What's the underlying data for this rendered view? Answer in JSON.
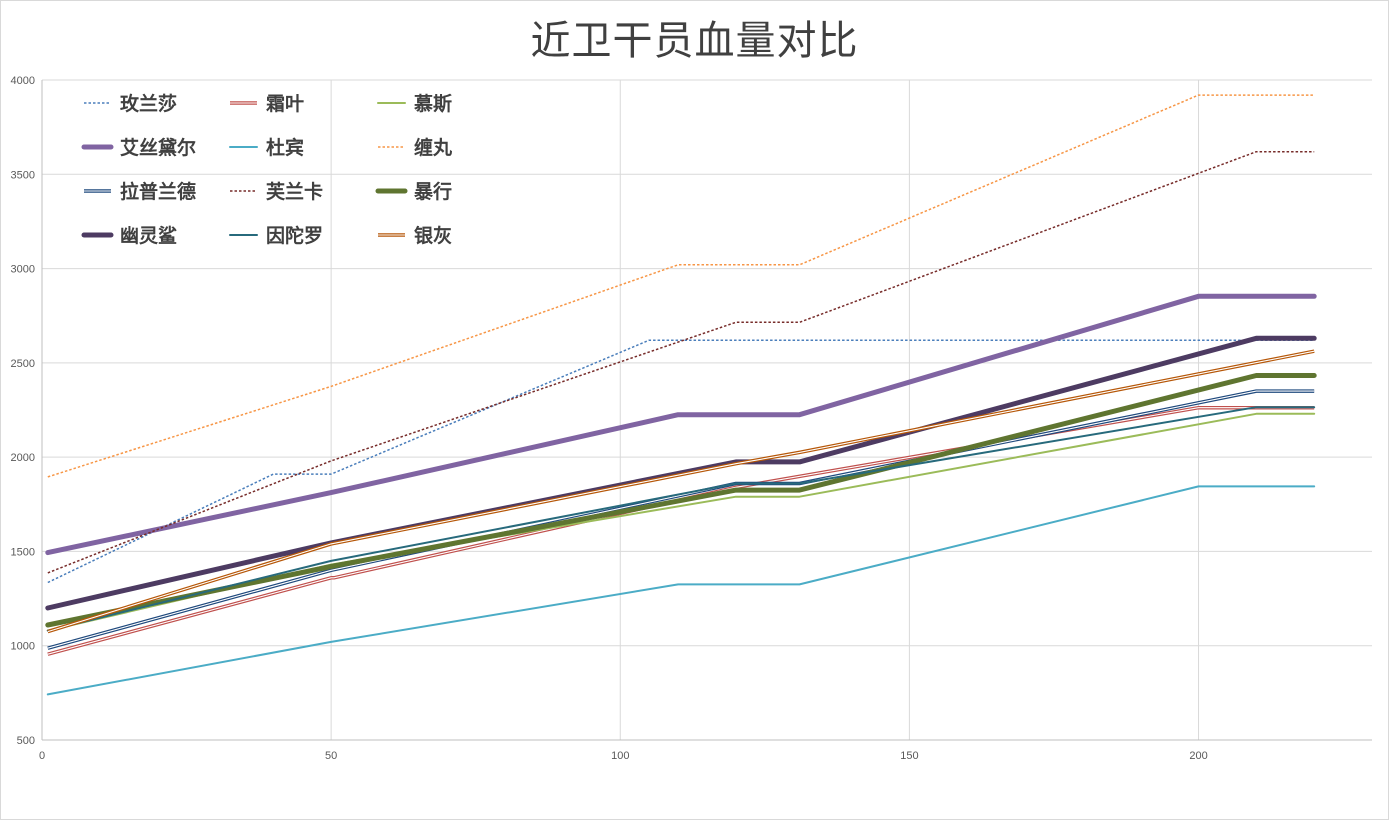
{
  "chart_data": {
    "type": "line",
    "title": "近卫干员血量对比",
    "xlim": [
      0,
      230
    ],
    "ylim": [
      500,
      4000
    ],
    "x_ticks": [
      0,
      50,
      100,
      150,
      200
    ],
    "y_ticks": [
      500,
      1000,
      1500,
      2000,
      2500,
      3000,
      3500,
      4000
    ],
    "grid": true,
    "legend_position": "top-left",
    "series": [
      {
        "name": "玫兰莎",
        "color": "#4a7ebb",
        "style": "dotted",
        "width": 1.5,
        "points": [
          [
            1,
            1335
          ],
          [
            40,
            1910
          ],
          [
            50,
            1910
          ],
          [
            105,
            2620
          ],
          [
            220,
            2620
          ]
        ]
      },
      {
        "name": "霜叶",
        "color": "#c0504d",
        "style": "double",
        "width": 2,
        "points": [
          [
            1,
            955
          ],
          [
            50,
            1360
          ],
          [
            50.5,
            1360
          ],
          [
            120,
            1840
          ],
          [
            200,
            2262
          ],
          [
            220,
            2262
          ]
        ]
      },
      {
        "name": "慕斯",
        "color": "#9bbb59",
        "style": "solid",
        "width": 2,
        "points": [
          [
            1,
            1080
          ],
          [
            50,
            1430
          ],
          [
            120,
            1790
          ],
          [
            131,
            1790
          ],
          [
            210,
            2230
          ],
          [
            220,
            2230
          ]
        ]
      },
      {
        "name": "艾丝黛尔",
        "color": "#8064a2",
        "style": "solid",
        "width": 5,
        "points": [
          [
            1,
            1494
          ],
          [
            50,
            1812
          ],
          [
            110,
            2225
          ],
          [
            131,
            2225
          ],
          [
            200,
            2853
          ],
          [
            220,
            2853
          ]
        ]
      },
      {
        "name": "杜宾",
        "color": "#4bacc6",
        "style": "solid",
        "width": 2,
        "points": [
          [
            1,
            742
          ],
          [
            50,
            1020
          ],
          [
            110,
            1325
          ],
          [
            131,
            1325
          ],
          [
            200,
            1845
          ],
          [
            220,
            1845
          ]
        ]
      },
      {
        "name": "缠丸",
        "color": "#f79646",
        "style": "dotted",
        "width": 1.5,
        "points": [
          [
            1,
            1895
          ],
          [
            50,
            2375
          ],
          [
            110,
            3020
          ],
          [
            131,
            3020
          ],
          [
            200,
            3920
          ],
          [
            220,
            3920
          ]
        ]
      },
      {
        "name": "拉普兰德",
        "color": "#1f497d",
        "style": "double",
        "width": 2,
        "points": [
          [
            1,
            987
          ],
          [
            50,
            1400
          ],
          [
            120,
            1860
          ],
          [
            131,
            1860
          ],
          [
            210,
            2350
          ],
          [
            220,
            2350
          ]
        ]
      },
      {
        "name": "芙兰卡",
        "color": "#772c2a",
        "style": "dotted",
        "width": 1.5,
        "points": [
          [
            1,
            1386
          ],
          [
            50,
            1980
          ],
          [
            120,
            2715
          ],
          [
            131,
            2715
          ],
          [
            210,
            3620
          ],
          [
            220,
            3620
          ]
        ]
      },
      {
        "name": "暴行",
        "color": "#5f7530",
        "style": "solid",
        "width": 5,
        "points": [
          [
            1,
            1110
          ],
          [
            50,
            1420
          ],
          [
            120,
            1825
          ],
          [
            131,
            1825
          ],
          [
            210,
            2433
          ],
          [
            220,
            2433
          ]
        ]
      },
      {
        "name": "幽灵鲨",
        "color": "#4d3b62",
        "style": "solid",
        "width": 5,
        "points": [
          [
            1,
            1200
          ],
          [
            50,
            1545
          ],
          [
            120,
            1975
          ],
          [
            131,
            1975
          ],
          [
            210,
            2630
          ],
          [
            220,
            2630
          ]
        ]
      },
      {
        "name": "因陀罗",
        "color": "#276a7c",
        "style": "solid",
        "width": 2,
        "points": [
          [
            1,
            1080
          ],
          [
            50,
            1450
          ],
          [
            120,
            1860
          ],
          [
            131,
            1860
          ],
          [
            210,
            2265
          ],
          [
            220,
            2265
          ]
        ]
      },
      {
        "name": "银灰",
        "color": "#b65708",
        "style": "double",
        "width": 2,
        "points": [
          [
            1,
            1075
          ],
          [
            50,
            1540
          ],
          [
            120,
            1965
          ],
          [
            131,
            2025
          ],
          [
            220,
            2562
          ]
        ]
      }
    ]
  }
}
